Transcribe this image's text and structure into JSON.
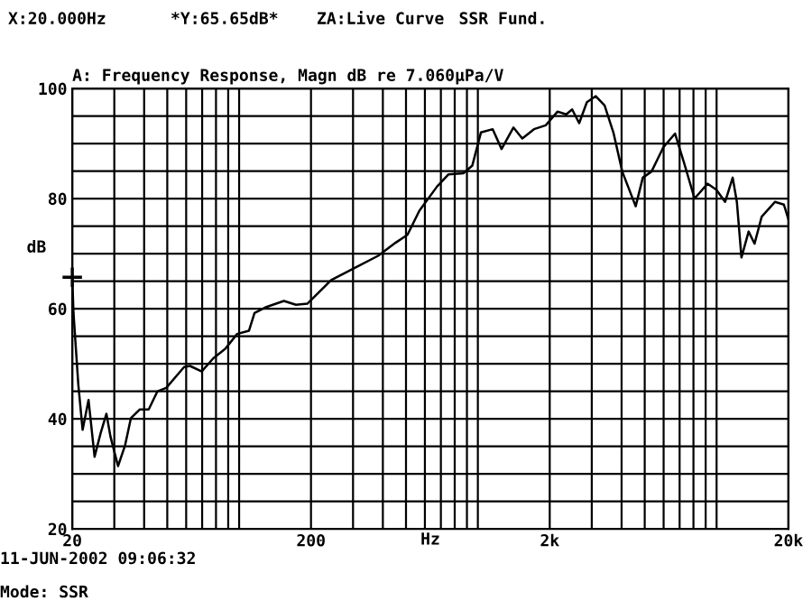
{
  "chart_data": {
    "type": "line",
    "title": "A: Frequency Response, Magn dB re 7.060µPa/V",
    "xlabel": "Hz",
    "ylabel": "dB",
    "log": "x",
    "grid": true,
    "xlim": [
      20,
      20000
    ],
    "ylim": [
      20,
      100
    ],
    "xticks": [
      20,
      {
        "value": 30,
        "label": null
      },
      {
        "value": 40,
        "label": null
      },
      {
        "value": 50,
        "label": null
      },
      {
        "value": 60,
        "label": null
      },
      {
        "value": 70,
        "label": null
      },
      {
        "value": 80,
        "label": null
      },
      {
        "value": 90,
        "label": null
      },
      {
        "value": 100,
        "label": null
      },
      200,
      {
        "value": 300,
        "label": null
      },
      {
        "value": 400,
        "label": null
      },
      {
        "value": 500,
        "label": null
      },
      {
        "value": 600,
        "label": null
      },
      {
        "value": 700,
        "label": null
      },
      {
        "value": 800,
        "label": null
      },
      {
        "value": 900,
        "label": null
      },
      {
        "value": 1000,
        "label": null
      },
      {
        "value": 2000,
        "label": "2k"
      },
      {
        "value": 3000,
        "label": null
      },
      {
        "value": 4000,
        "label": null
      },
      {
        "value": 5000,
        "label": null
      },
      {
        "value": 6000,
        "label": null
      },
      {
        "value": 7000,
        "label": null
      },
      {
        "value": 8000,
        "label": null
      },
      {
        "value": 9000,
        "label": null
      },
      {
        "value": 10000,
        "label": null
      },
      {
        "value": 20000,
        "label": "20k"
      }
    ],
    "yticks": [
      20,
      {
        "value": 25,
        "label": null
      },
      {
        "value": 30,
        "label": null
      },
      {
        "value": 35,
        "label": null
      },
      40,
      {
        "value": 45,
        "label": null
      },
      {
        "value": 50,
        "label": null
      },
      {
        "value": 55,
        "label": null
      },
      60,
      {
        "value": 65,
        "label": null
      },
      {
        "value": 70,
        "label": null
      },
      {
        "value": 75,
        "label": null
      },
      80,
      {
        "value": 85,
        "label": null
      },
      {
        "value": 90,
        "label": null
      },
      {
        "value": 95,
        "label": null
      },
      100
    ],
    "series": [
      {
        "color": "#000000",
        "marker": "none",
        "line_style": "solid",
        "x": [
          20,
          20.24,
          21.2,
          22.1,
          23.4,
          24.8,
          26.3,
          27.8,
          28.9,
          31.1,
          33.3,
          35.2,
          38.4,
          41.8,
          45.5,
          49.5,
          58.8,
          62.2,
          69.7,
          78,
          87.5,
          98,
          110,
          116,
          130,
          154,
          173,
          193,
          243,
          305,
          382,
          453,
          507,
          569,
          675,
          754,
          870,
          948,
          1030,
          1154,
          1257,
          1409,
          1535,
          1718,
          1924,
          2157,
          2346,
          2483,
          2657,
          2862,
          3118,
          3396,
          3696,
          4026,
          4582,
          4909,
          5338,
          5984,
          6700,
          7296,
          8088,
          9162,
          9977,
          10860,
          11680,
          12160,
          12710,
          13620,
          14420,
          15450,
          17580,
          19140,
          20000
        ],
        "values": [
          65.6,
          59.2,
          46.2,
          38,
          43.4,
          33.1,
          37.4,
          40.9,
          36.8,
          31.4,
          35.2,
          40.1,
          41.7,
          41.7,
          45,
          45.6,
          49.4,
          49.6,
          48.6,
          51,
          52.7,
          55.4,
          56,
          59.2,
          60.3,
          61.4,
          60.7,
          60.9,
          65.2,
          67.4,
          69.6,
          72,
          73.4,
          77.8,
          82.2,
          84.4,
          84.6,
          86,
          92,
          92.6,
          89,
          92.9,
          90.9,
          92.6,
          93.3,
          95.8,
          95.3,
          96.2,
          93.7,
          97.5,
          98.6,
          96.9,
          92,
          84.9,
          78.6,
          83.8,
          84.9,
          89.3,
          91.8,
          86.6,
          80,
          82.7,
          81.6,
          79.4,
          83.8,
          79.4,
          69.3,
          74,
          71.8,
          76.7,
          79.4,
          78.9,
          76.2
        ]
      },
      {
        "type": "scatter",
        "color": "#000000",
        "marker": "cross",
        "x": [
          20
        ],
        "values": [
          65.7
        ]
      }
    ],
    "annotations": [
      "X:20.000Hz",
      "*Y:65.65dB*",
      "ZA:Live Curve",
      "SSR Fund.",
      "11-JUN-2002 09:06:32",
      "Mode: SSR"
    ]
  }
}
